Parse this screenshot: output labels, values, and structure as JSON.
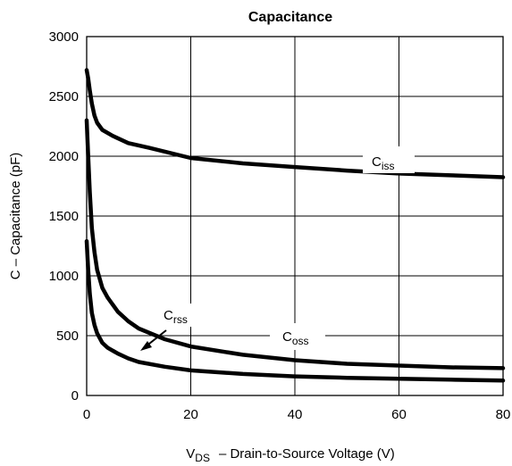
{
  "chart_data": {
    "type": "line",
    "title": "Capacitance",
    "ylabel": "C – Capacitance (pF)",
    "xlabel": {
      "main": "V",
      "sub": "DS",
      "rest": "– Drain-to-Source Voltage (V)"
    },
    "xlim": [
      0,
      80
    ],
    "ylim": [
      0,
      3000
    ],
    "xticks": [
      0,
      20,
      40,
      60,
      80
    ],
    "yticks": [
      0,
      500,
      1000,
      1500,
      2000,
      2500,
      3000
    ],
    "grid": true,
    "series": [
      {
        "name": "Ciss",
        "label_main": "C",
        "label_sub": "iss",
        "color": "#000000",
        "points": [
          [
            0,
            2720
          ],
          [
            0.3,
            2650
          ],
          [
            0.6,
            2550
          ],
          [
            1,
            2440
          ],
          [
            1.5,
            2340
          ],
          [
            2,
            2280
          ],
          [
            3,
            2220
          ],
          [
            5,
            2170
          ],
          [
            8,
            2110
          ],
          [
            12,
            2070
          ],
          [
            20,
            1985
          ],
          [
            30,
            1940
          ],
          [
            40,
            1910
          ],
          [
            50,
            1880
          ],
          [
            60,
            1855
          ],
          [
            70,
            1840
          ],
          [
            80,
            1825
          ]
        ]
      },
      {
        "name": "Coss",
        "label_main": "C",
        "label_sub": "oss",
        "color": "#000000",
        "points": [
          [
            0,
            2300
          ],
          [
            0.3,
            2000
          ],
          [
            0.6,
            1700
          ],
          [
            1,
            1400
          ],
          [
            1.5,
            1200
          ],
          [
            2,
            1050
          ],
          [
            3,
            900
          ],
          [
            4,
            820
          ],
          [
            6,
            700
          ],
          [
            8,
            620
          ],
          [
            10,
            560
          ],
          [
            15,
            470
          ],
          [
            20,
            410
          ],
          [
            30,
            340
          ],
          [
            40,
            295
          ],
          [
            50,
            265
          ],
          [
            60,
            250
          ],
          [
            70,
            235
          ],
          [
            80,
            228
          ]
        ]
      },
      {
        "name": "Crss",
        "label_main": "C",
        "label_sub": "rss",
        "color": "#000000",
        "points": [
          [
            0,
            1290
          ],
          [
            0.3,
            1050
          ],
          [
            0.6,
            850
          ],
          [
            1,
            690
          ],
          [
            1.5,
            590
          ],
          [
            2,
            520
          ],
          [
            3,
            440
          ],
          [
            4,
            400
          ],
          [
            6,
            350
          ],
          [
            8,
            310
          ],
          [
            10,
            280
          ],
          [
            15,
            240
          ],
          [
            20,
            210
          ],
          [
            30,
            180
          ],
          [
            40,
            160
          ],
          [
            50,
            148
          ],
          [
            60,
            140
          ],
          [
            70,
            132
          ],
          [
            80,
            125
          ]
        ]
      }
    ]
  }
}
